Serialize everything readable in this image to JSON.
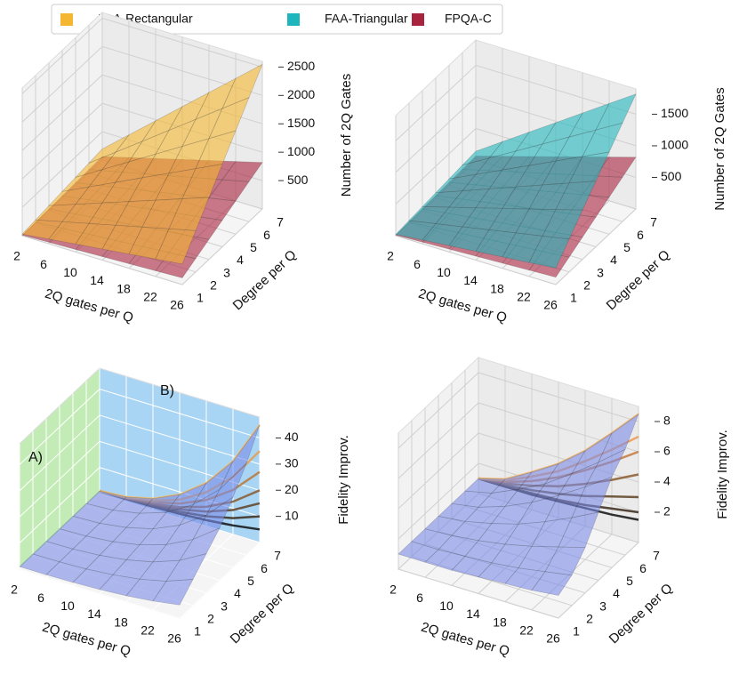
{
  "chart_data": [
    {
      "type": "surface3d",
      "xlabel": "2Q gates per Q",
      "ylabel": "Degree per Q",
      "zlabel": "Number of 2Q Gates",
      "x": [
        2,
        6,
        10,
        14,
        18,
        22,
        26
      ],
      "y": [
        1,
        2,
        3,
        4,
        5,
        6,
        7
      ],
      "xticks": [
        2,
        6,
        10,
        14,
        18,
        22,
        26
      ],
      "yticks": [
        1,
        2,
        3,
        4,
        5,
        6,
        7
      ],
      "zlim": [
        0,
        2600
      ],
      "zticks": [
        500,
        1000,
        1500,
        2000,
        2500
      ],
      "series": [
        {
          "name": "FAA-Rectangular",
          "color": "#f5b731",
          "values": [
            [
              28,
              84,
              140,
              196,
              252,
              308,
              364
            ],
            [
              56,
              168,
              280,
              392,
              504,
              616,
              728
            ],
            [
              84,
              252,
              420,
              588,
              756,
              924,
              1092
            ],
            [
              112,
              336,
              560,
              784,
              1008,
              1232,
              1456
            ],
            [
              140,
              420,
              700,
              980,
              1260,
              1540,
              1820
            ],
            [
              168,
              504,
              840,
              1176,
              1512,
              1848,
              2184
            ],
            [
              196,
              588,
              980,
              1372,
              1764,
              2156,
              2548
            ]
          ]
        },
        {
          "name": "FPQA-C",
          "color": "#a8233e",
          "values": [
            [
              9,
              27,
              45,
              63,
              81,
              99,
              117
            ],
            [
              18,
              54,
              90,
              126,
              162,
              198,
              234
            ],
            [
              27,
              81,
              135,
              189,
              243,
              297,
              351
            ],
            [
              36,
              108,
              180,
              252,
              324,
              396,
              468
            ],
            [
              45,
              135,
              225,
              315,
              405,
              495,
              585
            ],
            [
              54,
              162,
              270,
              378,
              486,
              594,
              702
            ],
            [
              63,
              189,
              315,
              441,
              567,
              693,
              819
            ]
          ]
        }
      ]
    },
    {
      "type": "surface3d",
      "xlabel": "2Q gates per Q",
      "ylabel": "Degree per Q",
      "zlabel": "Number of 2Q Gates",
      "x": [
        2,
        6,
        10,
        14,
        18,
        22,
        26
      ],
      "y": [
        1,
        2,
        3,
        4,
        5,
        6,
        7
      ],
      "xticks": [
        2,
        6,
        10,
        14,
        18,
        22,
        26
      ],
      "yticks": [
        1,
        2,
        3,
        4,
        5,
        6,
        7
      ],
      "zlim": [
        0,
        1900
      ],
      "zticks": [
        500,
        1000,
        1500
      ],
      "series": [
        {
          "name": "FAA-Triangular",
          "color": "#1fb5bd",
          "values": [
            [
              20,
              60,
              100,
              140,
              180,
              220,
              260
            ],
            [
              40,
              120,
              200,
              280,
              360,
              440,
              520
            ],
            [
              60,
              180,
              300,
              420,
              540,
              660,
              780
            ],
            [
              80,
              240,
              400,
              560,
              720,
              880,
              1040
            ],
            [
              100,
              300,
              500,
              700,
              900,
              1100,
              1300
            ],
            [
              120,
              360,
              600,
              840,
              1080,
              1320,
              1560
            ],
            [
              140,
              420,
              700,
              980,
              1260,
              1540,
              1820
            ]
          ]
        },
        {
          "name": "FPQA-C",
          "color": "#a8233e",
          "values": [
            [
              9,
              27,
              45,
              63,
              81,
              99,
              117
            ],
            [
              18,
              54,
              90,
              126,
              162,
              198,
              234
            ],
            [
              27,
              81,
              135,
              189,
              243,
              297,
              351
            ],
            [
              36,
              108,
              180,
              252,
              324,
              396,
              468
            ],
            [
              45,
              135,
              225,
              315,
              405,
              495,
              585
            ],
            [
              54,
              162,
              270,
              378,
              486,
              594,
              702
            ],
            [
              63,
              189,
              315,
              441,
              567,
              693,
              819
            ]
          ]
        }
      ]
    },
    {
      "type": "surface3d",
      "xlabel": "2Q gates per Q",
      "ylabel": "Degree per Q",
      "zlabel": "Fidelity Improv.",
      "x": [
        2,
        6,
        10,
        14,
        18,
        22,
        26
      ],
      "y": [
        1,
        2,
        3,
        4,
        5,
        6,
        7
      ],
      "xticks": [
        2,
        6,
        10,
        14,
        18,
        22,
        26
      ],
      "yticks": [
        1,
        2,
        3,
        4,
        5,
        6,
        7
      ],
      "zlim": [
        0,
        48
      ],
      "zticks": [
        10,
        20,
        30,
        40
      ],
      "annotations": [
        "A)",
        "B)"
      ],
      "wall_colors": [
        "#c3ebb5",
        "#a9d5f5"
      ],
      "line_colors": [
        "#111111",
        "#3a2a1a",
        "#5e4225",
        "#8a5a2e",
        "#b8793a",
        "#e0a050",
        "#f5c06a"
      ],
      "series": [
        {
          "color": "#7b8ce8",
          "values": [
            [
              1,
              1,
              1.2,
              1.6,
              2.3,
              3.4,
              5
            ],
            [
              1,
              1.1,
              1.5,
              2.4,
              3.8,
              6.2,
              10
            ],
            [
              1,
              1.2,
              1.9,
              3.3,
              5.6,
              9.3,
              15
            ],
            [
              1,
              1.3,
              2.3,
              4.2,
              7.4,
              12.5,
              20
            ],
            [
              1,
              1.4,
              2.9,
              5.5,
              10,
              17,
              27
            ],
            [
              1,
              1.6,
              3.5,
              7,
              13,
              22,
              35
            ],
            [
              1,
              1.8,
              4.3,
              9,
              16.5,
              28,
              45
            ]
          ]
        }
      ]
    },
    {
      "type": "surface3d",
      "xlabel": "2Q gates per Q",
      "ylabel": "Degree per Q",
      "zlabel": "Fidelity Improv.",
      "x": [
        2,
        6,
        10,
        14,
        18,
        22,
        26
      ],
      "y": [
        1,
        2,
        3,
        4,
        5,
        6,
        7
      ],
      "xticks": [
        2,
        6,
        10,
        14,
        18,
        22,
        26
      ],
      "yticks": [
        1,
        2,
        3,
        4,
        5,
        6,
        7
      ],
      "zlim": [
        0,
        9
      ],
      "zticks": [
        2,
        4,
        6,
        8
      ],
      "line_colors": [
        "#111111",
        "#3a2a1a",
        "#5e4225",
        "#8a5a2e",
        "#c47a3e",
        "#eb9a55",
        "#f7be73"
      ],
      "series": [
        {
          "color": "#7b8ce8",
          "values": [
            [
              1,
              1,
              1,
              1.1,
              1.2,
              1.3,
              1.5
            ],
            [
              1,
              1,
              1.1,
              1.2,
              1.4,
              1.7,
              2
            ],
            [
              1,
              1.1,
              1.3,
              1.6,
              2,
              2.5,
              3
            ],
            [
              1,
              1.2,
              1.6,
              2.1,
              2.8,
              3.6,
              4.5
            ],
            [
              1,
              1.3,
              1.9,
              2.7,
              3.7,
              4.8,
              6
            ],
            [
              1,
              1.4,
              2.2,
              3.1,
              4.3,
              5.6,
              7
            ],
            [
              1,
              1.5,
              2.5,
              3.6,
              5,
              6.7,
              8.5
            ]
          ]
        }
      ]
    }
  ]
}
